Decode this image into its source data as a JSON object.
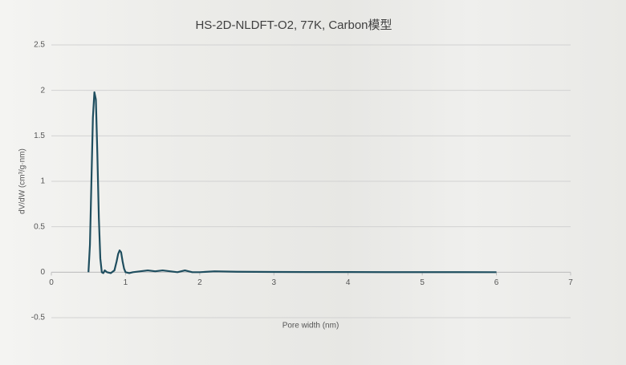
{
  "chart_data": {
    "type": "line",
    "title": "HS-2D-NLDFT-O2, 77K, Carbon模型",
    "x_label": "Pore width (nm)",
    "y_label": "dV/dW (cm³/g·nm)",
    "x": [
      0.5,
      0.52,
      0.54,
      0.56,
      0.58,
      0.6,
      0.62,
      0.64,
      0.66,
      0.68,
      0.7,
      0.72,
      0.75,
      0.8,
      0.85,
      0.88,
      0.9,
      0.92,
      0.94,
      0.96,
      0.98,
      1.0,
      1.05,
      1.1,
      1.2,
      1.3,
      1.4,
      1.5,
      1.6,
      1.7,
      1.8,
      1.85,
      1.9,
      2.0,
      2.2,
      2.5,
      3,
      3.5,
      4,
      4.5,
      5,
      5.5,
      6
    ],
    "series": [
      {
        "name": "dV/dW",
        "color": "#1f4e5f",
        "values": [
          0,
          0.3,
          1.0,
          1.7,
          1.98,
          1.9,
          1.3,
          0.6,
          0.15,
          0.0,
          -0.01,
          0.02,
          0.0,
          -0.01,
          0.02,
          0.12,
          0.2,
          0.24,
          0.22,
          0.12,
          0.04,
          0.0,
          -0.01,
          0.0,
          0.01,
          0.02,
          0.01,
          0.02,
          0.01,
          0.0,
          0.02,
          0.01,
          0.0,
          0.0,
          0.01,
          0.005,
          0.003,
          0.002,
          0.002,
          0.001,
          0.001,
          0.001,
          0.0
        ]
      }
    ],
    "xlim": [
      0,
      7
    ],
    "xticks": [
      0,
      1,
      2,
      3,
      4,
      5,
      6,
      7
    ],
    "ylim": [
      -0.5,
      2.5
    ],
    "yticks": [
      -0.5,
      0,
      0.5,
      1,
      1.5,
      2,
      2.5
    ],
    "grid": true
  }
}
